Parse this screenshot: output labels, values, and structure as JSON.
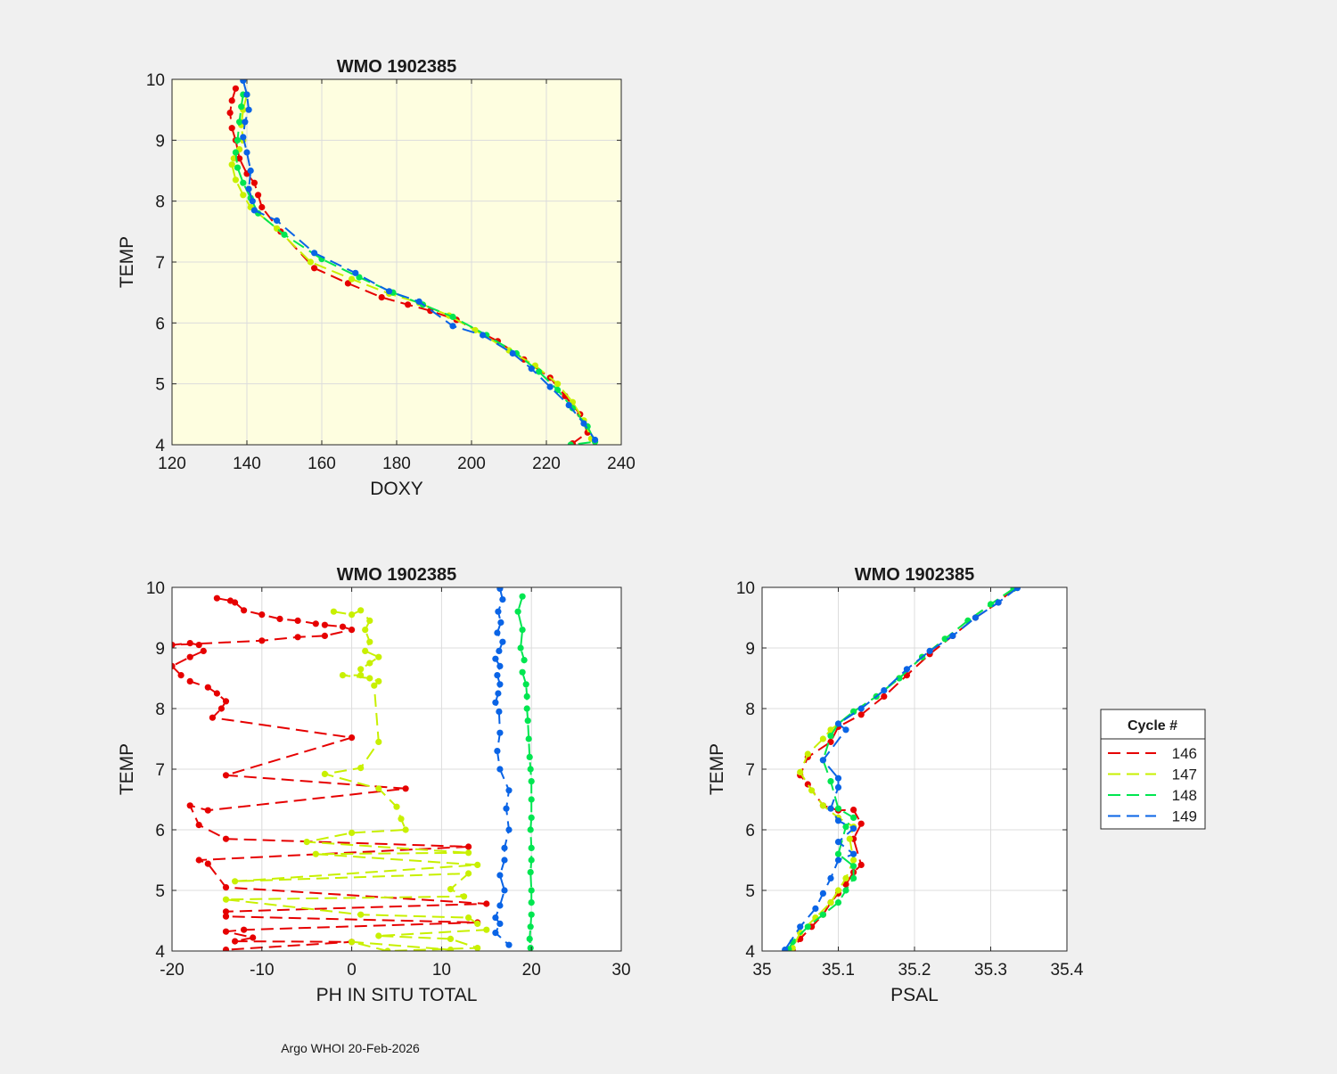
{
  "footer": "Argo WHOI 20-Feb-2026",
  "legend": {
    "title": "Cycle #",
    "entries": [
      {
        "label": "146",
        "color": "#e60000"
      },
      {
        "label": "147",
        "color": "#c8f000"
      },
      {
        "label": "148",
        "color": "#00e650"
      },
      {
        "label": "149",
        "color": "#0a64e6"
      }
    ]
  },
  "chart_data": [
    {
      "type": "line",
      "title": "WMO 1902385",
      "xlabel": "DOXY",
      "ylabel": "TEMP",
      "xlim": [
        120,
        240
      ],
      "ylim": [
        4,
        10
      ],
      "xticks": [
        120,
        140,
        160,
        180,
        200,
        220,
        240
      ],
      "yticks": [
        4,
        5,
        6,
        7,
        8,
        9,
        10
      ],
      "grid": true,
      "background": "#fefee0",
      "series": [
        {
          "name": "146",
          "color": "#e60000",
          "x": [
            137,
            136,
            135.5,
            136,
            137,
            138,
            140,
            142,
            143,
            144,
            149,
            158,
            167,
            176,
            183,
            189,
            196,
            207,
            214,
            221,
            225,
            229,
            231,
            227
          ],
          "y": [
            9.85,
            9.65,
            9.45,
            9.2,
            9.0,
            8.7,
            8.45,
            8.3,
            8.1,
            7.9,
            7.5,
            6.9,
            6.65,
            6.42,
            6.3,
            6.2,
            6.05,
            5.7,
            5.4,
            5.1,
            4.8,
            4.5,
            4.2,
            4.02
          ]
        },
        {
          "name": "147",
          "color": "#c8f000",
          "x": [
            140,
            139,
            138.5,
            139,
            138,
            136.5,
            136,
            137,
            139,
            141,
            148,
            157,
            168,
            178,
            186,
            194,
            201,
            210,
            217,
            223,
            227,
            230,
            232
          ],
          "y": [
            9.75,
            9.5,
            9.25,
            9.0,
            8.85,
            8.7,
            8.6,
            8.35,
            8.1,
            7.9,
            7.55,
            7.0,
            6.72,
            6.48,
            6.33,
            6.12,
            5.88,
            5.55,
            5.3,
            5.0,
            4.7,
            4.4,
            4.1
          ]
        },
        {
          "name": "148",
          "color": "#00e650",
          "x": [
            139,
            138.5,
            138,
            137.5,
            137,
            137.5,
            139,
            141,
            143,
            150,
            160,
            170,
            179,
            187,
            195,
            204,
            212,
            218,
            223,
            227,
            231,
            233,
            226.5
          ],
          "y": [
            9.75,
            9.55,
            9.3,
            9.0,
            8.8,
            8.55,
            8.3,
            8.05,
            7.8,
            7.45,
            7.05,
            6.75,
            6.5,
            6.3,
            6.1,
            5.8,
            5.5,
            5.2,
            4.9,
            4.6,
            4.3,
            4.05,
            4.0
          ]
        },
        {
          "name": "149",
          "color": "#0a64e6",
          "x": [
            139,
            140,
            140.5,
            139.5,
            139,
            140,
            141,
            140.5,
            141.5,
            142,
            148,
            158,
            169,
            178,
            186,
            195,
            203,
            211,
            216,
            221,
            226,
            230,
            233
          ],
          "y": [
            9.98,
            9.75,
            9.5,
            9.3,
            9.05,
            8.8,
            8.5,
            8.2,
            8.0,
            7.85,
            7.68,
            7.15,
            6.82,
            6.52,
            6.35,
            5.95,
            5.8,
            5.5,
            5.25,
            4.95,
            4.65,
            4.35,
            4.08
          ]
        }
      ]
    },
    {
      "type": "line",
      "title": "WMO 1902385",
      "xlabel": "PH IN SITU TOTAL",
      "ylabel": "TEMP",
      "xlim": [
        -20,
        30
      ],
      "ylim": [
        4,
        10
      ],
      "xticks": [
        -20,
        -10,
        0,
        10,
        20,
        30
      ],
      "yticks": [
        4,
        5,
        6,
        7,
        8,
        9,
        10
      ],
      "grid": true,
      "background": "#ffffff",
      "series": [
        {
          "name": "146",
          "color": "#e60000",
          "x": [
            -15,
            -13.5,
            -13,
            -12,
            -10,
            -8,
            -6,
            -4,
            -3,
            -1,
            0,
            -3,
            -6,
            -10,
            -20,
            -18,
            -17,
            -16.5,
            -18,
            -20,
            -19,
            -18,
            -16,
            -15,
            -14,
            -14.5,
            -15.5,
            0,
            -14,
            6,
            -16,
            -18,
            -17,
            -14,
            13,
            -17,
            -16,
            -14,
            15,
            -14,
            -14,
            14,
            -12,
            -14,
            -11,
            -13,
            0,
            -14
          ],
          "y": [
            9.82,
            9.78,
            9.75,
            9.62,
            9.55,
            9.48,
            9.45,
            9.4,
            9.38,
            9.35,
            9.3,
            9.2,
            9.18,
            9.12,
            9.05,
            9.08,
            9.05,
            8.95,
            8.85,
            8.7,
            8.55,
            8.45,
            8.35,
            8.25,
            8.12,
            8.0,
            7.85,
            7.52,
            6.9,
            6.68,
            6.32,
            6.4,
            6.08,
            5.85,
            5.72,
            5.5,
            5.44,
            5.05,
            4.78,
            4.65,
            4.57,
            4.47,
            4.35,
            4.32,
            4.22,
            4.16,
            4.15,
            4.02
          ]
        },
        {
          "name": "147",
          "color": "#c8f000",
          "x": [
            -2,
            0,
            1,
            2,
            1.5,
            2,
            1.5,
            3,
            2,
            1,
            1,
            -1,
            2,
            3,
            2.5,
            3,
            1,
            -3,
            3,
            5,
            5.5,
            6,
            0,
            -5,
            13,
            -4,
            14,
            -13,
            13,
            11,
            12.5,
            -14,
            1,
            13,
            14,
            15,
            3,
            11,
            14,
            4,
            0,
            11
          ],
          "y": [
            9.6,
            9.55,
            9.62,
            9.45,
            9.3,
            9.1,
            8.95,
            8.85,
            8.75,
            8.65,
            8.55,
            8.55,
            8.5,
            8.45,
            8.38,
            7.45,
            7.02,
            6.92,
            6.68,
            6.38,
            6.18,
            6.0,
            5.95,
            5.8,
            5.62,
            5.6,
            5.42,
            5.15,
            5.28,
            5.02,
            4.9,
            4.85,
            4.6,
            4.55,
            4.45,
            4.35,
            4.25,
            4.2,
            4.05,
            4.0,
            4.15,
            4.02
          ]
        },
        {
          "name": "148",
          "color": "#00e650",
          "x": [
            19,
            18.5,
            19,
            18.8,
            19.2,
            19,
            19.4,
            19.5,
            19.5,
            19.6,
            19.7,
            19.8,
            19.9,
            20,
            20,
            20,
            19.9,
            20,
            20,
            19.9,
            20,
            20,
            20,
            19.9,
            19.8,
            19.9
          ],
          "y": [
            9.85,
            9.6,
            9.3,
            9.0,
            8.8,
            8.6,
            8.4,
            8.2,
            8.0,
            7.8,
            7.5,
            7.2,
            7.0,
            6.8,
            6.5,
            6.2,
            6.0,
            5.7,
            5.5,
            5.3,
            5.0,
            4.8,
            4.6,
            4.4,
            4.2,
            4.05
          ]
        },
        {
          "name": "149",
          "color": "#0a64e6",
          "x": [
            16.5,
            16.8,
            16.3,
            16.6,
            16.2,
            16.8,
            16.4,
            16,
            16.5,
            16.2,
            16.5,
            16.3,
            16,
            16.4,
            16.5,
            16.2,
            16.5,
            17.5,
            17.2,
            17.5,
            17,
            17,
            16.5,
            17,
            16.5,
            16,
            16.5,
            16,
            17.5
          ],
          "y": [
            9.98,
            9.8,
            9.6,
            9.42,
            9.25,
            9.1,
            8.95,
            8.82,
            8.7,
            8.55,
            8.4,
            8.25,
            8.1,
            7.95,
            7.6,
            7.3,
            7.0,
            6.65,
            6.35,
            6.0,
            5.7,
            5.5,
            5.25,
            5.0,
            4.75,
            4.55,
            4.45,
            4.3,
            4.1
          ]
        }
      ]
    },
    {
      "type": "line",
      "title": "WMO 1902385",
      "xlabel": "PSAL",
      "ylabel": "TEMP",
      "xlim": [
        35,
        35.4
      ],
      "ylim": [
        4,
        10
      ],
      "xticks": [
        35,
        35.1,
        35.2,
        35.3,
        35.4
      ],
      "yticks": [
        4,
        5,
        6,
        7,
        8,
        9,
        10
      ],
      "grid": true,
      "background": "#ffffff",
      "series": [
        {
          "name": "146",
          "color": "#e60000",
          "x": [
            35.33,
            35.31,
            35.28,
            35.25,
            35.22,
            35.19,
            35.16,
            35.13,
            35.1,
            35.09,
            35.06,
            35.05,
            35.06,
            35.08,
            35.1,
            35.12,
            35.13,
            35.12,
            35.13,
            35.12,
            35.11,
            35.1,
            35.09,
            35.08,
            35.065,
            35.05,
            35.04
          ],
          "y": [
            9.98,
            9.75,
            9.5,
            9.2,
            8.9,
            8.55,
            8.2,
            7.9,
            7.7,
            7.45,
            7.2,
            6.9,
            6.75,
            6.4,
            6.32,
            6.33,
            6.1,
            5.85,
            5.42,
            5.3,
            5.1,
            4.95,
            4.8,
            4.6,
            4.4,
            4.2,
            4.02
          ]
        },
        {
          "name": "147",
          "color": "#c8f000",
          "x": [
            35.33,
            35.3,
            35.27,
            35.24,
            35.21,
            35.18,
            35.15,
            35.12,
            35.09,
            35.08,
            35.06,
            35.05,
            35.065,
            35.08,
            35.1,
            35.12,
            35.115,
            35.12,
            35.11,
            35.1,
            35.09,
            35.07,
            35.05,
            35.04
          ],
          "y": [
            9.98,
            9.72,
            9.45,
            9.15,
            8.85,
            8.5,
            8.2,
            7.95,
            7.65,
            7.5,
            7.25,
            6.95,
            6.65,
            6.4,
            6.2,
            6.05,
            5.85,
            5.5,
            5.2,
            5.0,
            4.8,
            4.55,
            4.3,
            4.05
          ]
        },
        {
          "name": "148",
          "color": "#00e650",
          "x": [
            35.33,
            35.3,
            35.27,
            35.24,
            35.21,
            35.18,
            35.15,
            35.12,
            35.1,
            35.09,
            35.08,
            35.09,
            35.1,
            35.12,
            35.11,
            35.1,
            35.12,
            35.12,
            35.11,
            35.1,
            35.08,
            35.06,
            35.04,
            35.035
          ],
          "y": [
            9.98,
            9.72,
            9.45,
            9.15,
            8.85,
            8.5,
            8.2,
            7.95,
            7.75,
            7.55,
            7.15,
            6.8,
            6.35,
            6.2,
            6.05,
            5.6,
            5.4,
            5.2,
            5.0,
            4.8,
            4.6,
            4.4,
            4.15,
            4.03
          ]
        },
        {
          "name": "149",
          "color": "#0a64e6",
          "x": [
            35.335,
            35.31,
            35.28,
            35.25,
            35.22,
            35.19,
            35.16,
            35.13,
            35.1,
            35.11,
            35.08,
            35.1,
            35.1,
            35.09,
            35.1,
            35.12,
            35.1,
            35.12,
            35.1,
            35.09,
            35.08,
            35.07,
            35.05,
            35.03
          ],
          "y": [
            9.99,
            9.75,
            9.5,
            9.2,
            8.95,
            8.65,
            8.3,
            8.0,
            7.75,
            7.65,
            7.15,
            6.85,
            6.7,
            6.35,
            6.15,
            6.02,
            5.8,
            5.6,
            5.5,
            5.2,
            4.95,
            4.7,
            4.4,
            4.02
          ]
        }
      ]
    }
  ]
}
